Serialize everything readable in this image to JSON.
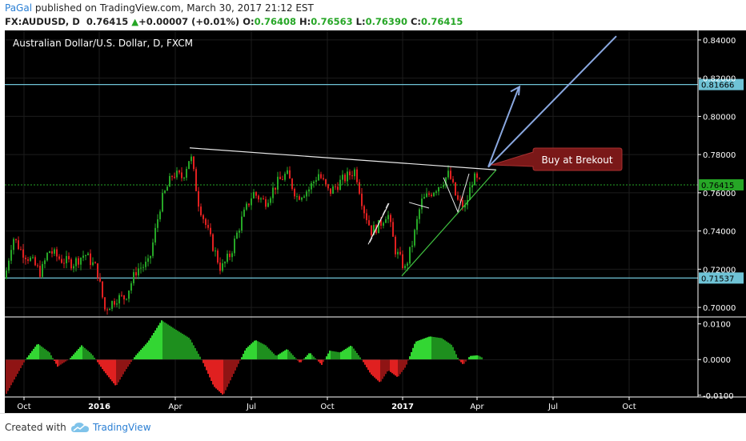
{
  "header": {
    "author": "PaGal",
    "published": "published on TradingView.com, March 30, 2017 21:12 EST",
    "symbol": "FX:AUDUSD, D",
    "last": "0.76415",
    "change": "+0.00007 (+0.01%)",
    "open_label": "O:",
    "open": "0.76408",
    "high_label": "H:",
    "high": "0.76563",
    "low_label": "L:",
    "low": "0.76390",
    "close_label": "C:",
    "close": "0.76415"
  },
  "chart_data": {
    "type": "candlestick",
    "title": "Australian Dollar/U.S. Dollar, D, FXCM",
    "x_ticks": [
      "Oct",
      "2016",
      "Apr",
      "Jul",
      "Oct",
      "2017",
      "Apr",
      "Jul",
      "Oct"
    ],
    "y_ticks": [
      "0.84000",
      "0.82000",
      "0.80000",
      "0.78000",
      "0.76000",
      "0.74000",
      "0.72000",
      "0.70000"
    ],
    "ylim": [
      0.695,
      0.845
    ],
    "horizontal_levels": [
      {
        "label": "0.81666",
        "value": 0.81666
      },
      {
        "label": "0.71537",
        "value": 0.71537
      }
    ],
    "current_price": {
      "label": "0.76415",
      "value": 0.76415
    },
    "annotation": "Buy at Brekout",
    "indicator": {
      "y_ticks": [
        "0.0100",
        "0.0000",
        "-0.0100"
      ],
      "ylim": [
        -0.0105,
        0.0115
      ]
    }
  },
  "footer": {
    "created": "Created with",
    "brand": "TradingView"
  },
  "colors": {
    "up": "#26a626",
    "down": "#e02020",
    "level_line": "#6fc3d6",
    "trendline": "#e8e8e8",
    "support": "#3fbf3f",
    "arrow": "#8aa8e0",
    "callout": "#7a1818"
  }
}
